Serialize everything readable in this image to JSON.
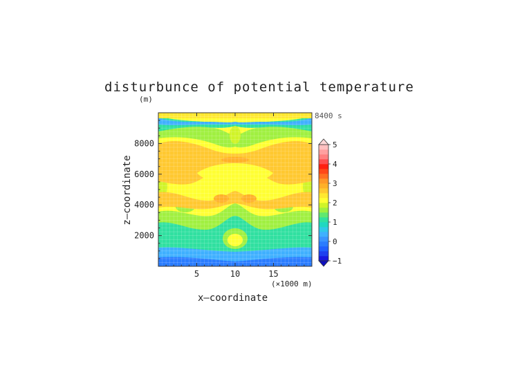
{
  "chart_data": {
    "type": "heatmap",
    "title": "disturbunce of potential temperature",
    "xlabel": "x—coordinate",
    "ylabel": "z—coordinate",
    "y_unit_label": "(m)",
    "x_unit_label": "(×1000 m)",
    "time_label": "8400 s",
    "x_ticks": [
      5,
      10,
      15
    ],
    "y_ticks": [
      2000,
      4000,
      6000,
      8000
    ],
    "xlim": [
      0,
      20
    ],
    "ylim": [
      0,
      10000
    ],
    "colorbar": {
      "tick_labels": [
        "5",
        "4",
        "3",
        "2",
        "1",
        "0",
        "−1"
      ],
      "levels": [
        -1,
        -0.75,
        -0.5,
        -0.25,
        0,
        0.25,
        0.5,
        0.75,
        1,
        1.25,
        1.5,
        1.75,
        2,
        2.25,
        2.5,
        2.75,
        3,
        3.25,
        3.5,
        3.75,
        4,
        4.25,
        4.5,
        4.75,
        5
      ],
      "colors": [
        "#1818e0",
        "#1e40f0",
        "#2060ff",
        "#2a7cff",
        "#3a94ff",
        "#3fb0ff",
        "#30c8e8",
        "#20d8c0",
        "#30e0a0",
        "#60e870",
        "#a0f040",
        "#d0f428",
        "#ffff33",
        "#ffe830",
        "#ffc830",
        "#ffb028",
        "#ff9828",
        "#ff7020",
        "#ff4818",
        "#ff2010",
        "#ff5050",
        "#ff8080",
        "#ffa0a0",
        "#ffc0c0"
      ],
      "triangle_top": "#ffd8d8",
      "triangle_bottom": "#1010c0"
    },
    "field_regions": [
      {
        "level": 0.0,
        "desc": "blue bands near top and bottom"
      },
      {
        "level": 0.5,
        "desc": "cyan near z=1500-3000 and z=9500"
      },
      {
        "level": 1.0,
        "desc": "green around z=3000-4000 and z=9000"
      },
      {
        "level": 2.0,
        "desc": "yellow over mid levels"
      },
      {
        "level": 2.5,
        "desc": "orange patches around z=4500 and z=6000-8500"
      }
    ]
  }
}
